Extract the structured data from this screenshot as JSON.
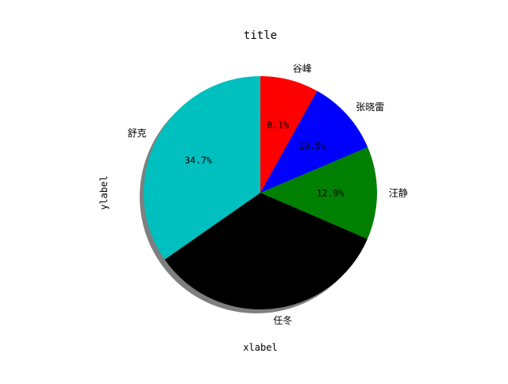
{
  "chart_data": {
    "type": "pie",
    "title": "title",
    "xlabel": "xlabel",
    "ylabel": "ylabel",
    "shadow": true,
    "start_angle_deg": 90,
    "direction": "clockwise",
    "slices": [
      {
        "label": "谷峰",
        "value": 8.1,
        "pct_label": "8.1%",
        "color": "#ff0000"
      },
      {
        "label": "张晓雷",
        "value": 10.5,
        "pct_label": "10.5%",
        "color": "#0000ff"
      },
      {
        "label": "汪静",
        "value": 12.9,
        "pct_label": "12.9%",
        "color": "#008000"
      },
      {
        "label": "任冬",
        "value": 33.8,
        "pct_label": "",
        "color": "#000000"
      },
      {
        "label": "舒克",
        "value": 34.7,
        "pct_label": "34.7%",
        "color": "#00bfbf"
      }
    ]
  }
}
